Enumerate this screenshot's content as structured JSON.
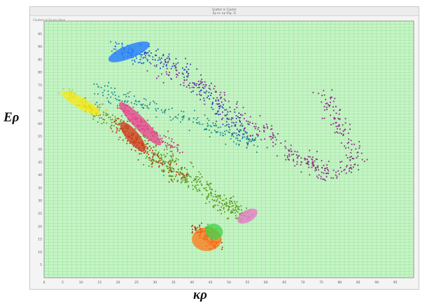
{
  "chart_data": {
    "type": "scatter",
    "title": "",
    "inner_title_line1": "Scatter in Cluster",
    "inner_title_line2": "Eρ vs. κρ (Fig. 2)",
    "inner_caption": "Clusters in Eρ-κρ plane",
    "xlabel": "κρ",
    "ylabel": "Eρ",
    "xlim": [
      0,
      100
    ],
    "ylim": [
      0,
      100
    ],
    "grid": true,
    "x_ticks": [
      0,
      5,
      10,
      15,
      20,
      25,
      30,
      35,
      40,
      45,
      50,
      55,
      60,
      65,
      70,
      75,
      80,
      85,
      90,
      95
    ],
    "y_ticks": [
      5,
      10,
      15,
      20,
      25,
      30,
      35,
      40,
      45,
      50,
      55,
      60,
      65,
      70,
      75,
      80,
      85,
      90,
      95
    ],
    "plot_background": "#c6f4c6",
    "grid_color": "#9be09b",
    "clusters": [
      {
        "color": "#1e6fe0",
        "path": [
          [
            19,
            90
          ],
          [
            24,
            87
          ],
          [
            29,
            84
          ]
        ],
        "spread": 2.2,
        "n": 70,
        "ellipse": {
          "cx": 23,
          "cy": 88,
          "rx": 6,
          "ry": 2.6,
          "angle": -22,
          "fill": "#1e78ff"
        }
      },
      {
        "color": "#2d3fb4",
        "path": [
          [
            27,
            89
          ],
          [
            38,
            80
          ],
          [
            48,
            66
          ],
          [
            56,
            53
          ]
        ],
        "spread": 2.6,
        "n": 180
      },
      {
        "color": "#8b2a8b",
        "path": [
          [
            29,
            83
          ],
          [
            45,
            72
          ],
          [
            58,
            58
          ],
          [
            70,
            46
          ],
          [
            78,
            40
          ]
        ],
        "spread": 3.0,
        "n": 260
      },
      {
        "color": "#8b2a8b",
        "path": [
          [
            76,
            72
          ],
          [
            80,
            60
          ],
          [
            84,
            48
          ],
          [
            81,
            38
          ]
        ],
        "spread": 2.6,
        "n": 120
      },
      {
        "color": "#1c8c8c",
        "path": [
          [
            15,
            73
          ],
          [
            30,
            66
          ],
          [
            45,
            59
          ],
          [
            58,
            52
          ]
        ],
        "spread": 2.4,
        "n": 200
      },
      {
        "color": "#d7c900",
        "path": [
          [
            5,
            73
          ],
          [
            10,
            68
          ],
          [
            15,
            64
          ]
        ],
        "spread": 1.4,
        "n": 90,
        "ellipse": {
          "cx": 10,
          "cy": 68,
          "rx": 6,
          "ry": 2.2,
          "angle": 30,
          "fill": "#f3eb20"
        }
      },
      {
        "color": "#6a8f1a",
        "path": [
          [
            10,
            68
          ],
          [
            22,
            58
          ],
          [
            34,
            46
          ],
          [
            46,
            32
          ],
          [
            53,
            24
          ]
        ],
        "spread": 2.6,
        "n": 280
      },
      {
        "color": "#c8326e",
        "path": [
          [
            20,
            67
          ],
          [
            28,
            58
          ],
          [
            36,
            50
          ]
        ],
        "spread": 1.8,
        "n": 110,
        "ellipse": {
          "cx": 26,
          "cy": 60,
          "rx": 8,
          "ry": 2.4,
          "angle": 46,
          "fill": "#e8428a"
        }
      },
      {
        "color": "#c23416",
        "path": [
          [
            19,
            60
          ],
          [
            25,
            52
          ],
          [
            31,
            45
          ],
          [
            38,
            38
          ]
        ],
        "spread": 2.0,
        "n": 150,
        "ellipse": {
          "cx": 24,
          "cy": 55,
          "rx": 5,
          "ry": 2.4,
          "angle": 50,
          "fill": "#d43a1c"
        }
      },
      {
        "color": "#53a21c",
        "path": [
          [
            28,
            48
          ],
          [
            38,
            38
          ],
          [
            48,
            30
          ],
          [
            55,
            24
          ]
        ],
        "spread": 2.4,
        "n": 160,
        "ellipse": {
          "cx": 55,
          "cy": 24,
          "rx": 3,
          "ry": 2.3,
          "angle": -30,
          "fill": "#e878c8"
        }
      },
      {
        "color": "#b03a14",
        "path": [
          [
            41,
            20
          ],
          [
            44,
            16
          ],
          [
            47,
            12
          ]
        ],
        "spread": 1.6,
        "n": 110,
        "ellipse": {
          "cx": 44,
          "cy": 15,
          "rx": 4,
          "ry": 4.6,
          "angle": 0,
          "fill": "#ff7a1a"
        }
      },
      {
        "color": "#3bbf3b",
        "path": [
          [
            44,
            20
          ],
          [
            47,
            17
          ]
        ],
        "spread": 1.0,
        "n": 25,
        "ellipse": {
          "cx": 46,
          "cy": 18,
          "rx": 2.4,
          "ry": 3.0,
          "angle": 20,
          "fill": "#48d048"
        }
      }
    ]
  }
}
